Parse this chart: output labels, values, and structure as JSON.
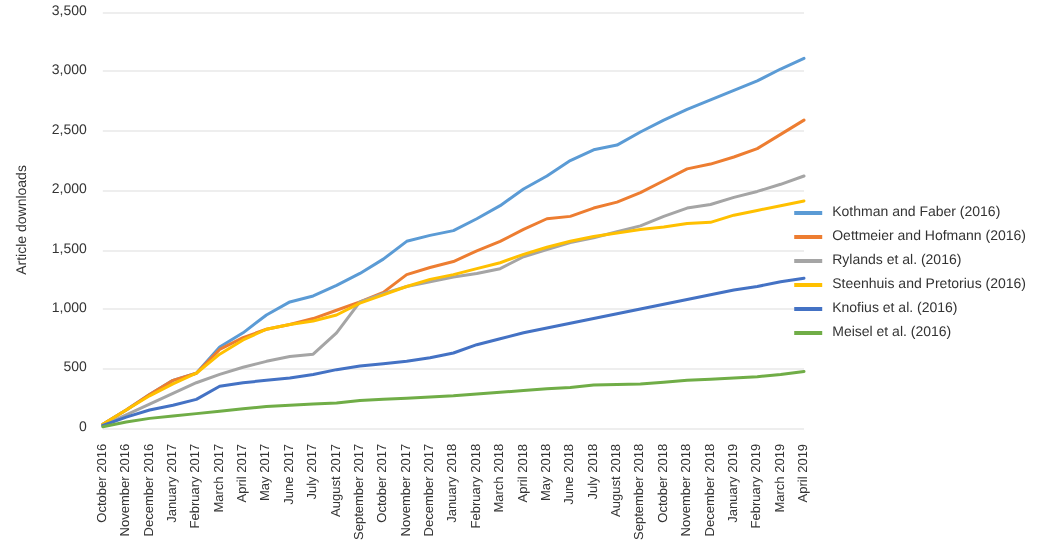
{
  "chart_data": {
    "type": "line",
    "ylabel": "Article downloads",
    "categories": [
      "October 2016",
      "November 2016",
      "December 2016",
      "January 2017",
      "February 2017",
      "March 2017",
      "April 2017",
      "May 2017",
      "June 2017",
      "July 2017",
      "August 2017",
      "September 2017",
      "October 2017",
      "November 2017",
      "December 2017",
      "January 2018",
      "February 2018",
      "March 2018",
      "April 2018",
      "May 2018",
      "June 2018",
      "July 2018",
      "August 2018",
      "September 2018",
      "October 2018",
      "November 2018",
      "December 2018",
      "January 2019",
      "February 2019",
      "March 2019",
      "April 2019"
    ],
    "series": [
      {
        "name": "Kothman and Faber (2016)",
        "color": "#5b9bd5",
        "values": [
          30,
          150,
          280,
          400,
          460,
          680,
          800,
          950,
          1060,
          1110,
          1200,
          1300,
          1420,
          1570,
          1620,
          1660,
          1760,
          1870,
          2010,
          2120,
          2250,
          2340,
          2380,
          2490,
          2590,
          2680,
          2760,
          2840,
          2920,
          3020,
          3110
        ]
      },
      {
        "name": "Oettmeier and Hofmann (2016)",
        "color": "#ed7d31",
        "values": [
          30,
          150,
          280,
          400,
          460,
          660,
          760,
          830,
          870,
          920,
          990,
          1060,
          1140,
          1290,
          1350,
          1400,
          1490,
          1570,
          1670,
          1760,
          1780,
          1850,
          1900,
          1980,
          2080,
          2180,
          2220,
          2280,
          2350,
          2470,
          2590
        ]
      },
      {
        "name": "Rylands et al. (2016)",
        "color": "#a5a5a5",
        "values": [
          20,
          110,
          200,
          290,
          380,
          450,
          510,
          560,
          600,
          620,
          800,
          1060,
          1130,
          1190,
          1230,
          1270,
          1300,
          1340,
          1440,
          1500,
          1560,
          1600,
          1650,
          1700,
          1780,
          1850,
          1880,
          1940,
          1990,
          2050,
          2120
        ]
      },
      {
        "name": "Steenhuis and Pretorius (2016)",
        "color": "#ffc000",
        "values": [
          30,
          150,
          270,
          370,
          460,
          620,
          740,
          830,
          870,
          900,
          950,
          1050,
          1120,
          1190,
          1250,
          1290,
          1340,
          1390,
          1460,
          1520,
          1570,
          1610,
          1640,
          1670,
          1690,
          1720,
          1730,
          1790,
          1830,
          1870,
          1910
        ]
      },
      {
        "name": "Knofius et al. (2016)",
        "color": "#4472c4",
        "values": [
          20,
          90,
          150,
          190,
          240,
          350,
          380,
          400,
          420,
          450,
          490,
          520,
          540,
          560,
          590,
          630,
          700,
          750,
          800,
          840,
          880,
          920,
          960,
          1000,
          1040,
          1080,
          1120,
          1160,
          1190,
          1230,
          1260
        ]
      },
      {
        "name": "Meisel et al. (2016)",
        "color": "#70ad47",
        "values": [
          10,
          50,
          80,
          100,
          120,
          140,
          160,
          180,
          190,
          200,
          210,
          230,
          240,
          250,
          260,
          270,
          285,
          300,
          315,
          330,
          340,
          360,
          365,
          370,
          385,
          400,
          410,
          420,
          430,
          450,
          475
        ]
      }
    ],
    "ylim": [
      0,
      3500
    ],
    "yticks": [
      0,
      500,
      {
        "value": 1000,
        "label": "1,000"
      },
      {
        "value": 1500,
        "label": "1,500"
      },
      {
        "value": 2000,
        "label": "2,000"
      },
      {
        "value": 2500,
        "label": "2,500"
      },
      {
        "value": 3000,
        "label": "3,000"
      },
      {
        "value": 3500,
        "label": "3,500"
      }
    ],
    "grid": "y",
    "legend": "right",
    "marker": "none",
    "line_style": "solid"
  }
}
